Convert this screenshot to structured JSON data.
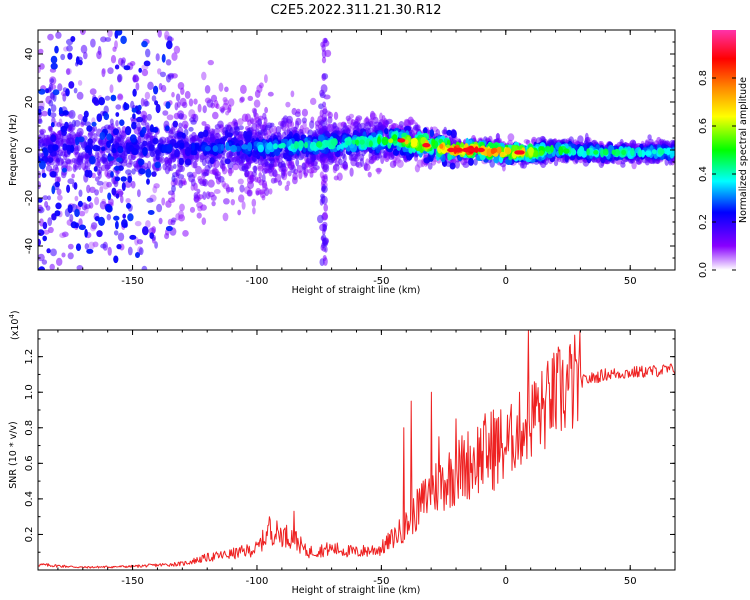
{
  "figure": {
    "title": "C2E5.2022.311.21.30.R12"
  },
  "colors": {
    "snr_line": "#ee2222",
    "colorbar": [
      "#ff33aa",
      "#ff0000",
      "#ff8800",
      "#ffff00",
      "#00ff00",
      "#00ffff",
      "#0000ff",
      "#8800ff",
      "#ffffff"
    ],
    "scatter_core": "#2244ff",
    "scatter_faint": "#d8b8f8"
  },
  "chart_data": [
    {
      "type": "heatmap",
      "title": "C2E5.2022.311.21.30.R12",
      "xlabel": "Height of straight line (km)",
      "ylabel": "Frequency (Hz)",
      "xlim": [
        -188,
        68
      ],
      "ylim": [
        -50,
        50
      ],
      "x_ticks": [
        -150,
        -100,
        -50,
        0,
        50
      ],
      "x_tick_labels": [
        "-150",
        "-100",
        "-50",
        "0",
        "50"
      ],
      "y_ticks": [
        -40,
        -20,
        0,
        20,
        40
      ],
      "y_tick_labels": [
        "-40",
        "-20",
        "0",
        "20",
        "40"
      ],
      "colorbar": {
        "label": "Normalized spectral amplitude",
        "range": [
          0,
          1
        ],
        "ticks": [
          0.0,
          0.2,
          0.4,
          0.6,
          0.8
        ],
        "tick_labels": [
          "0.0",
          "0.2",
          "0.4",
          "0.6",
          "0.8"
        ]
      },
      "ridge_frequency": {
        "x": [
          -188,
          -160,
          -130,
          -100,
          -80,
          -60,
          -45,
          -30,
          -20,
          -10,
          0,
          10,
          20,
          40,
          68
        ],
        "y": [
          0,
          0,
          1,
          1,
          2,
          3,
          4,
          2,
          0,
          0,
          -1,
          -1,
          0,
          -1,
          -1
        ]
      },
      "ridge_amplitude": {
        "x": [
          -188,
          -130,
          -110,
          -90,
          -70,
          -50,
          -40,
          -25,
          -15,
          5,
          20,
          40,
          68
        ],
        "y": [
          0.25,
          0.28,
          0.35,
          0.45,
          0.5,
          0.55,
          0.75,
          0.85,
          0.95,
          0.9,
          0.55,
          0.5,
          0.45
        ]
      },
      "spread_hz": {
        "x": [
          -188,
          -135,
          -130,
          -100,
          -75,
          -50,
          -20,
          68
        ],
        "y": [
          50,
          50,
          25,
          18,
          14,
          10,
          4,
          3
        ]
      },
      "grid": false
    },
    {
      "type": "line",
      "xlabel": "Height of straight line (km)",
      "ylabel": "SNR (10 * v/v)",
      "y_scale_label": "(x10",
      "y_scale_exponent": "4",
      "xlim": [
        -188,
        68
      ],
      "ylim": [
        0,
        13500
      ],
      "x_ticks": [
        -150,
        -100,
        -50,
        0,
        50
      ],
      "x_tick_labels": [
        "-150",
        "-100",
        "-50",
        "0",
        "50"
      ],
      "y_ticks": [
        2000,
        4000,
        6000,
        8000,
        10000,
        12000
      ],
      "y_tick_labels": [
        "0.2",
        "0.4",
        "0.6",
        "0.8",
        "1.0",
        "1.2"
      ],
      "series": [
        {
          "x": [
            -188,
            -170,
            -150,
            -130,
            -120,
            -110,
            -100,
            -95,
            -90,
            -85,
            -80,
            -70,
            -60,
            -50,
            -40,
            -35,
            -30,
            -25,
            -20,
            -15,
            -10,
            -5,
            0,
            5,
            10,
            15,
            20,
            25,
            30,
            35,
            40,
            50,
            60,
            68
          ],
          "y": [
            300,
            150,
            200,
            350,
            700,
            900,
            1200,
            2200,
            2000,
            1800,
            1000,
            1200,
            1000,
            1200,
            2500,
            3500,
            4500,
            5000,
            5500,
            6000,
            6500,
            6800,
            7000,
            7800,
            8500,
            9000,
            9800,
            10300,
            10600,
            10800,
            11000,
            11100,
            11200,
            11300
          ]
        }
      ],
      "spikes": [
        {
          "x": -95,
          "y": 3000
        },
        {
          "x": -85,
          "y": 3300
        },
        {
          "x": -41,
          "y": 8000
        },
        {
          "x": -38,
          "y": 9500
        },
        {
          "x": -30,
          "y": 10000
        },
        {
          "x": -27,
          "y": 7500
        },
        {
          "x": -20,
          "y": 8500
        },
        {
          "x": -5,
          "y": 9000
        },
        {
          "x": 9,
          "y": 13500
        },
        {
          "x": 12,
          "y": 10500
        },
        {
          "x": 18,
          "y": 9600
        },
        {
          "x": 22,
          "y": 9800
        }
      ],
      "grid": false
    }
  ]
}
